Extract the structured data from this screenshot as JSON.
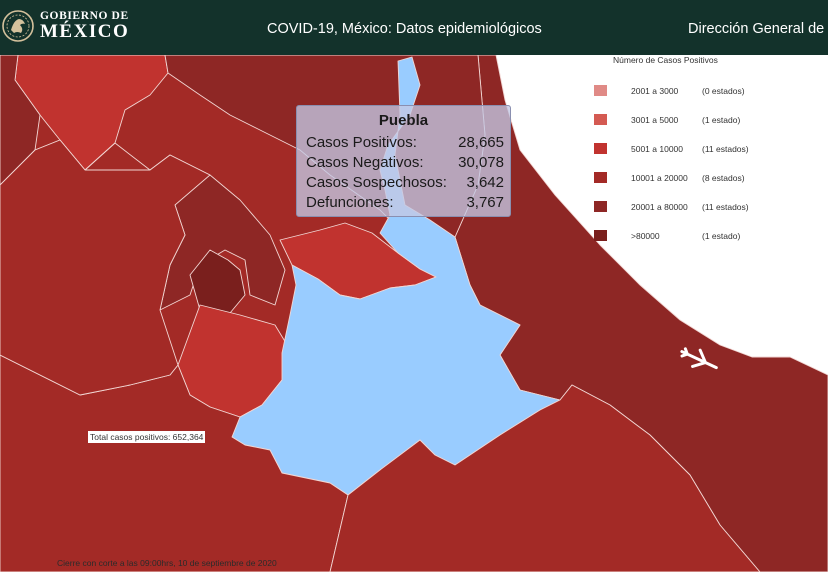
{
  "header": {
    "logo_line1": "GOBIERNO DE",
    "logo_line2": "MÉXICO",
    "title": "COVID-19, México: Datos epidemiológicos",
    "agency": "Dirección General de"
  },
  "colors": {
    "header_bg": "#13322b",
    "sea": "#ffffff",
    "range_2001_3000": "#e08a86",
    "range_3001_5000": "#d45a52",
    "range_5001_10000": "#c1332f",
    "range_10001_20000": "#a32a26",
    "range_20001_80000": "#8e2725",
    "range_over_80000": "#7a1f1d",
    "highlight": "#99ccff"
  },
  "legend": {
    "title": "Número de Casos Positivos",
    "rows": [
      {
        "range": "2001 a    3000",
        "count": "(0 estados)",
        "color": "#e08a86"
      },
      {
        "range": "3001 a    5000",
        "count": "(1 estado)",
        "color": "#d45a52"
      },
      {
        "range": "5001 a   10000",
        "count": "(11 estados)",
        "color": "#c1332f"
      },
      {
        "range": "10001 a   20000",
        "count": "(8 estados)",
        "color": "#a32a26"
      },
      {
        "range": "20001 a   80000",
        "count": "(11 estados)",
        "color": "#8e2725"
      },
      {
        "range": ">80000",
        "count": "(1 estado)",
        "color": "#7a1f1d"
      }
    ]
  },
  "tooltip": {
    "state": "Puebla",
    "rows": [
      {
        "label": "Casos Positivos:",
        "value": "28,665"
      },
      {
        "label": "Casos Negativos:",
        "value": "30,078"
      },
      {
        "label": "Casos Sospechosos:",
        "value": "3,642"
      },
      {
        "label": "Defunciones:",
        "value": "3,767"
      }
    ]
  },
  "total_label": "Total casos positivos: 652,364",
  "cutoff_note": "Cierre con corte a las 09:00hrs, 10 de septiembre de 2020"
}
